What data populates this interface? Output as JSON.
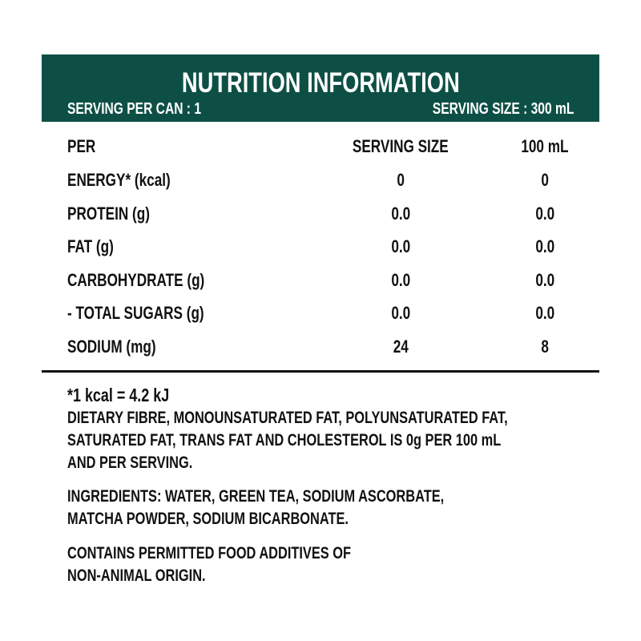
{
  "header": {
    "title": "NUTRITION INFORMATION",
    "serving_per_can": "SERVING PER CAN : 1",
    "serving_size": "SERVING SIZE : 300 mL",
    "background_color": "#0e4f45"
  },
  "table": {
    "columns": [
      "PER",
      "SERVING SIZE",
      "100 mL"
    ],
    "rows": [
      {
        "label": "ENERGY* (kcal)",
        "serving": "0",
        "per100": "0"
      },
      {
        "label": "PROTEIN (g)",
        "serving": "0.0",
        "per100": "0.0"
      },
      {
        "label": "FAT (g)",
        "serving": "0.0",
        "per100": "0.0"
      },
      {
        "label": "CARBOHYDRATE (g)",
        "serving": "0.0",
        "per100": "0.0"
      },
      {
        "label": "- TOTAL SUGARS (g)",
        "serving": "0.0",
        "per100": "0.0"
      },
      {
        "label": "SODIUM (mg)",
        "serving": "24",
        "per100": "8"
      }
    ]
  },
  "notes": {
    "kcal": "*1 kcal = 4.2 kJ",
    "dietary": [
      "DIETARY FIBRE, MONOUNSATURATED FAT, POLYUNSATURATED FAT,",
      "SATURATED FAT, TRANS FAT AND CHOLESTEROL IS 0g PER 100 mL",
      "AND PER SERVING."
    ],
    "ingredients": [
      "INGREDIENTS: WATER, GREEN TEA, SODIUM ASCORBATE,",
      "MATCHA POWDER, SODIUM BICARBONATE."
    ],
    "additives": [
      "CONTAINS PERMITTED FOOD ADDITIVES OF",
      "NON-ANIMAL ORIGIN."
    ]
  }
}
